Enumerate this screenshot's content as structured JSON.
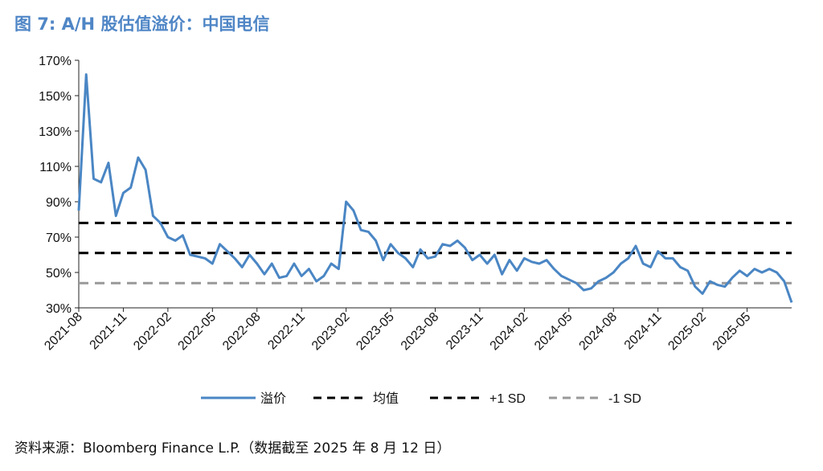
{
  "title": "图 7: A/H 股估值溢价：中国电信",
  "source": "资料来源：Bloomberg Finance L.P.（数据截至 2025 年 8 月 12 日）",
  "chart_data": {
    "type": "line",
    "y_ticks": [
      "170%",
      "150%",
      "130%",
      "110%",
      "90%",
      "70%",
      "50%",
      "30%"
    ],
    "ylim": [
      30,
      170
    ],
    "x_ticks": [
      "2021-08",
      "2021-11",
      "2022-02",
      "2022-05",
      "2022-08",
      "2022-11",
      "2023-02",
      "2023-05",
      "2023-08",
      "2023-11",
      "2024-02",
      "2024-05",
      "2024-08",
      "2024-11",
      "2025-02",
      "2025-05"
    ],
    "xlim": [
      "2021-08",
      "2025-08"
    ],
    "series": [
      {
        "name": "溢价",
        "color": "#4a86c4",
        "style": "solid",
        "x": [
          "2021-08",
          "2021-08",
          "2021-09",
          "2021-09",
          "2021-10",
          "2021-10",
          "2021-11",
          "2021-11",
          "2021-12",
          "2021-12",
          "2022-01",
          "2022-01",
          "2022-02",
          "2022-02",
          "2022-03",
          "2022-03",
          "2022-04",
          "2022-04",
          "2022-05",
          "2022-05",
          "2022-06",
          "2022-06",
          "2022-07",
          "2022-07",
          "2022-08",
          "2022-08",
          "2022-09",
          "2022-09",
          "2022-10",
          "2022-10",
          "2022-11",
          "2022-11",
          "2022-12",
          "2022-12",
          "2023-01",
          "2023-01",
          "2023-02",
          "2023-02",
          "2023-03",
          "2023-03",
          "2023-04",
          "2023-04",
          "2023-05",
          "2023-05",
          "2023-06",
          "2023-06",
          "2023-07",
          "2023-07",
          "2023-08",
          "2023-08",
          "2023-09",
          "2023-09",
          "2023-10",
          "2023-10",
          "2023-11",
          "2023-11",
          "2023-12",
          "2023-12",
          "2024-01",
          "2024-01",
          "2024-02",
          "2024-02",
          "2024-03",
          "2024-03",
          "2024-04",
          "2024-04",
          "2024-05",
          "2024-05",
          "2024-06",
          "2024-06",
          "2024-07",
          "2024-07",
          "2024-08",
          "2024-08",
          "2024-09",
          "2024-09",
          "2024-10",
          "2024-10",
          "2024-11",
          "2024-11",
          "2024-12",
          "2024-12",
          "2025-01",
          "2025-01",
          "2025-02",
          "2025-02",
          "2025-03",
          "2025-03",
          "2025-04",
          "2025-04",
          "2025-05",
          "2025-05",
          "2025-06",
          "2025-06",
          "2025-07",
          "2025-07",
          "2025-08"
        ],
        "values": [
          85,
          162,
          103,
          101,
          112,
          82,
          95,
          98,
          115,
          108,
          82,
          78,
          70,
          68,
          71,
          60,
          59,
          58,
          55,
          66,
          62,
          58,
          53,
          60,
          55,
          49,
          55,
          47,
          48,
          55,
          48,
          52,
          45,
          48,
          55,
          52,
          90,
          85,
          74,
          73,
          68,
          57,
          66,
          61,
          58,
          53,
          63,
          58,
          59,
          66,
          65,
          68,
          64,
          57,
          60,
          55,
          60,
          49,
          57,
          51,
          58,
          56,
          55,
          57,
          52,
          48,
          46,
          44,
          40,
          41,
          45,
          47,
          50,
          55,
          58,
          65,
          55,
          53,
          62,
          58,
          58,
          53,
          51,
          42,
          38,
          45,
          43,
          42,
          47,
          51,
          48,
          52,
          50,
          52,
          50,
          45,
          33
        ]
      },
      {
        "name": "均值",
        "color": "#000000",
        "style": "dashed",
        "value": 61
      },
      {
        "name": "+1 SD",
        "color": "#000000",
        "style": "dashed",
        "value": 78
      },
      {
        "name": "-1 SD",
        "color": "#999999",
        "style": "dashed",
        "value": 44
      }
    ],
    "legend": [
      "溢价",
      "均值",
      "+1 SD",
      "-1 SD"
    ],
    "legend_position": "bottom"
  }
}
